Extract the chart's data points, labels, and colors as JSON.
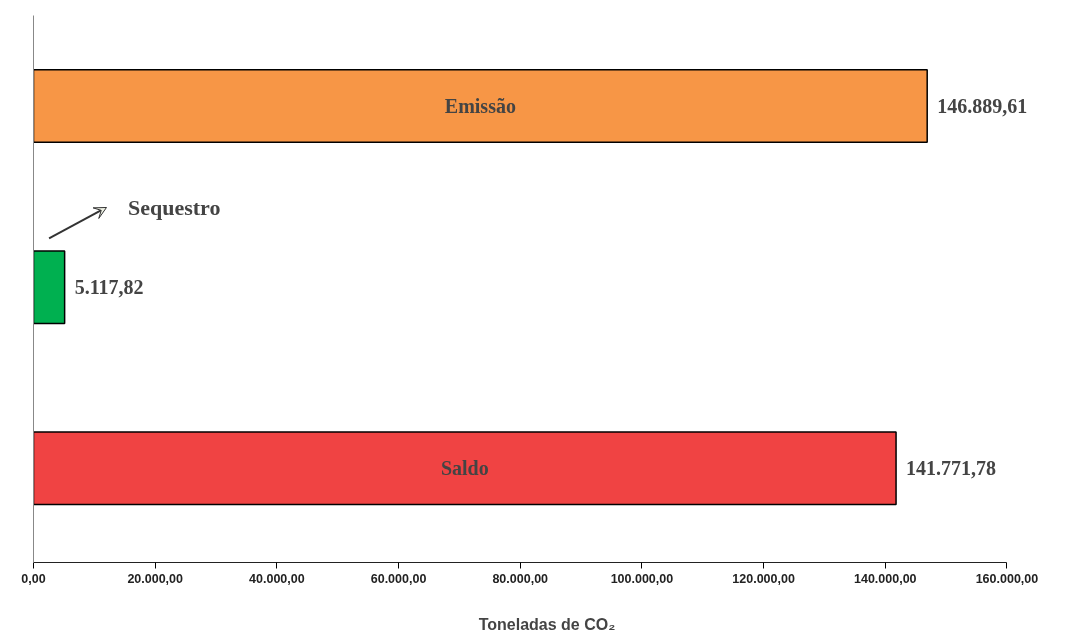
{
  "chart_data": {
    "type": "bar",
    "orientation": "horizontal",
    "categories": [
      "Emissão",
      "Sequestro",
      "Saldo"
    ],
    "values": [
      146889.61,
      5117.82,
      141771.78
    ],
    "colors": [
      "#f79646",
      "#00b050",
      "#f04343"
    ],
    "value_labels": [
      "146.889,61",
      "5.117,82",
      "141.771,78"
    ],
    "xlabel": "Toneladas de CO₂",
    "xlim": [
      0,
      160000
    ],
    "xticks": [
      {
        "value": 0,
        "label": "0,00"
      },
      {
        "value": 20000,
        "label": "20.000,00"
      },
      {
        "value": 40000,
        "label": "40.000,00"
      },
      {
        "value": 60000,
        "label": "60.000,00"
      },
      {
        "value": 80000,
        "label": "80.000,00"
      },
      {
        "value": 100000,
        "label": "100.000,00"
      },
      {
        "value": 120000,
        "label": "120.000,00"
      },
      {
        "value": 140000,
        "label": "140.000,00"
      },
      {
        "value": 160000,
        "label": "160.000,00"
      }
    ],
    "grid": false,
    "legend": false
  }
}
